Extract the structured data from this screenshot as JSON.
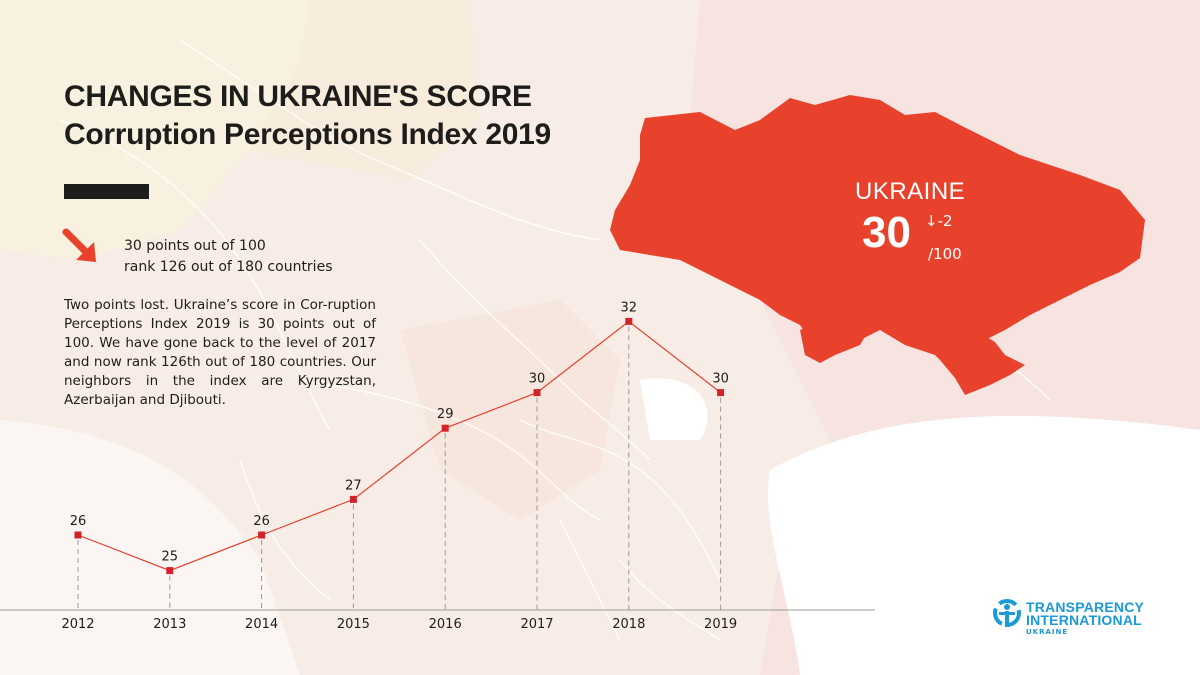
{
  "header": {
    "title_line1": "CHANGES IN UKRAINE'S SCORE",
    "title_line2": "Corruption Perceptions Index 2019"
  },
  "summary": {
    "points_text": "30 points out of 100",
    "rank_text": "rank 126 out of 180 countries",
    "paragraph": "Two points lost. Ukraine’s score in Cor-ruption Perceptions Index 2019 is 30 points out of 100. We have gone back to the level of 2017 and now rank 126th out of 180 countries. Our neighbors in the index are Kyrgyzstan, Azerbaijan and Djibouti."
  },
  "map_callout": {
    "country": "UKRAINE",
    "score": "30",
    "delta": "↓-2",
    "max": "/100"
  },
  "logo": {
    "line1": "TRANSPARENCY",
    "line2": "INTERNATIONAL",
    "line3": "UKRAINE"
  },
  "colors": {
    "accent": "#e8412c",
    "text": "#1d1d1b",
    "logo_blue": "#1a9ad6",
    "marker": "#d2232a"
  },
  "icons": {
    "trend": "arrow-down-right-icon",
    "logo": "transparency-international-icon"
  },
  "chart_data": {
    "type": "line",
    "x": [
      "2012",
      "2013",
      "2014",
      "2015",
      "2016",
      "2017",
      "2018",
      "2019"
    ],
    "values": [
      26,
      25,
      26,
      27,
      29,
      30,
      32,
      30
    ],
    "title": "",
    "xlabel": "",
    "ylabel": "",
    "grid": false,
    "legend": "none"
  }
}
